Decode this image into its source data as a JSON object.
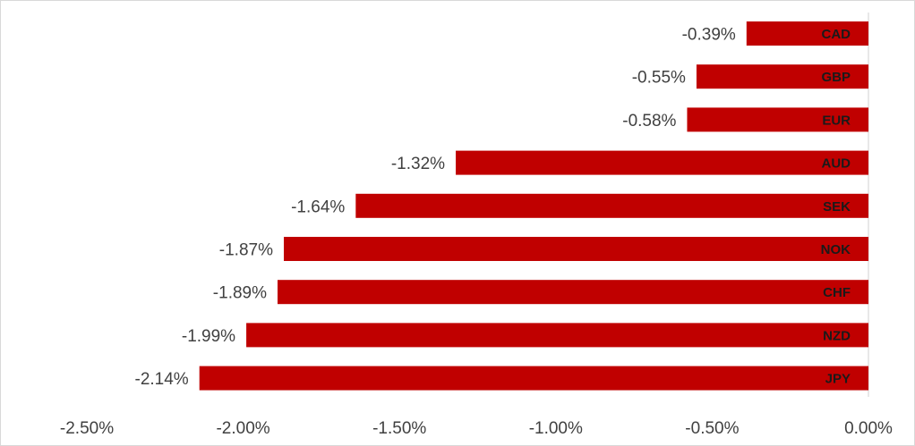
{
  "chart_data": {
    "type": "bar",
    "orientation": "horizontal",
    "categories": [
      "CAD",
      "GBP",
      "EUR",
      "AUD",
      "SEK",
      "NOK",
      "CHF",
      "NZD",
      "JPY"
    ],
    "values": [
      -0.39,
      -0.55,
      -0.58,
      -1.32,
      -1.64,
      -1.87,
      -1.89,
      -1.99,
      -2.14
    ],
    "value_labels": [
      "-0.39%",
      "-0.55%",
      "-0.58%",
      "-1.32%",
      "-1.64%",
      "-1.87%",
      "-1.89%",
      "-1.99%",
      "-2.14%"
    ],
    "xlim": [
      -2.5,
      0.0
    ],
    "x_ticks": [
      -2.5,
      -2.0,
      -1.5,
      -1.0,
      -0.5,
      0.0
    ],
    "x_tick_labels": [
      "-2.50%",
      "-2.00%",
      "-1.50%",
      "-1.00%",
      "-0.50%",
      "0.00%"
    ],
    "bar_color": "#c00000",
    "grid": false,
    "legend": "none",
    "title": "",
    "xlabel": "",
    "ylabel": ""
  }
}
